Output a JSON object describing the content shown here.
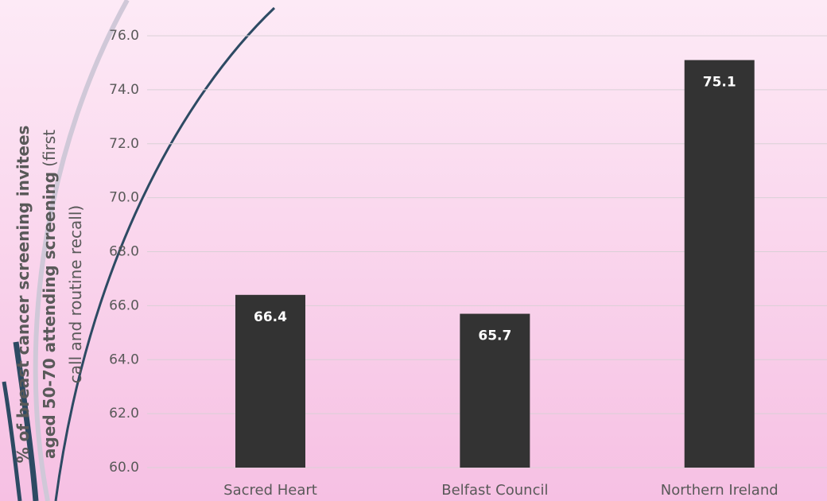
{
  "chart_data": {
    "type": "bar",
    "categories": [
      "Sacred Heart",
      "Belfast Council",
      "Northern Ireland"
    ],
    "values": [
      66.4,
      65.7,
      75.1
    ],
    "color": "#333333",
    "ylim": [
      60,
      76
    ],
    "yticks": [
      {
        "value": 60,
        "label": "60.0"
      },
      {
        "value": 62,
        "label": "62.0"
      },
      {
        "value": 64,
        "label": "64.0"
      },
      {
        "value": 66,
        "label": "66.0"
      },
      {
        "value": 68,
        "label": "68.0"
      },
      {
        "value": 70,
        "label": "70.0"
      },
      {
        "value": 72,
        "label": "72.0"
      },
      {
        "value": 74,
        "label": "74.0"
      },
      {
        "value": 76,
        "label": "76.0"
      }
    ],
    "grid": true,
    "y_label": [
      [
        {
          "text": "% of breast cancer screening invitees",
          "bold": true
        }
      ],
      [
        {
          "text": "aged 50-70 attending screening",
          "bold": true
        },
        {
          "text": "(first",
          "bold": false
        }
      ],
      [
        {
          "text": "call and routine recall)",
          "bold": false
        }
      ]
    ]
  }
}
